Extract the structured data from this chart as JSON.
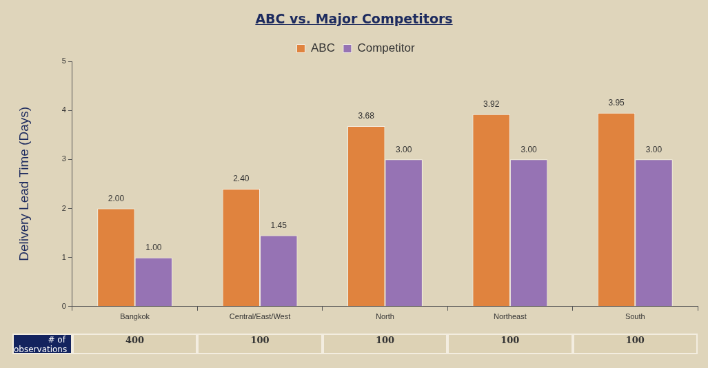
{
  "chart_data": {
    "type": "bar",
    "title": "ABC vs. Major Competitors",
    "ylabel": "Delivery Lead Time (Days)",
    "categories": [
      "Bangkok",
      "Central/East/West",
      "North",
      "Northeast",
      "South"
    ],
    "series": [
      {
        "name": "ABC",
        "color": "#e0833e",
        "values": [
          2.0,
          2.4,
          3.68,
          3.92,
          3.95
        ],
        "value_labels": [
          "2.00",
          "2.40",
          "3.68",
          "3.92",
          "3.95"
        ]
      },
      {
        "name": "Competitor",
        "color": "#9673b4",
        "values": [
          1.0,
          1.45,
          3.0,
          3.0,
          3.0
        ],
        "value_labels": [
          "1.00",
          "1.45",
          "3.00",
          "3.00",
          "3.00"
        ]
      }
    ],
    "ylim": [
      0,
      5
    ],
    "yticks": [
      0,
      1,
      2,
      3,
      4,
      5
    ],
    "grid": false,
    "legend": "top",
    "annotations": [
      "# of observations",
      "400",
      "100",
      "100",
      "100",
      "100"
    ]
  }
}
